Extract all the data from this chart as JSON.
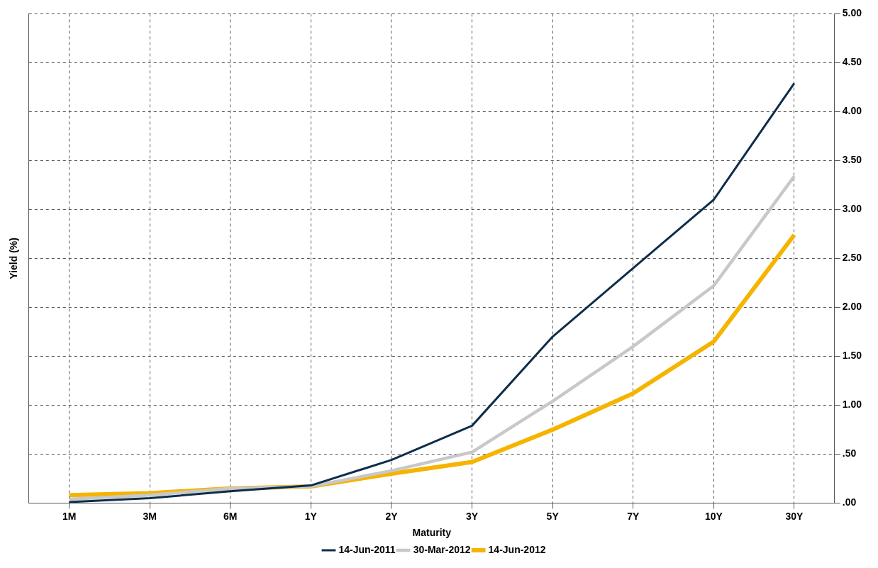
{
  "chart_data": {
    "type": "line",
    "xlabel": "Maturity",
    "ylabel": "Yield (%)",
    "categories": [
      "1M",
      "3M",
      "6M",
      "1Y",
      "2Y",
      "3Y",
      "5Y",
      "7Y",
      "10Y",
      "30Y"
    ],
    "series": [
      {
        "name": "14-Jun-2011",
        "color": "#0d2d4a",
        "values": [
          0.01,
          0.05,
          0.12,
          0.18,
          0.44,
          0.79,
          1.7,
          2.4,
          3.1,
          4.29
        ]
      },
      {
        "name": "30-Mar-2012",
        "color": "#c8c8c8",
        "values": [
          0.04,
          0.08,
          0.15,
          0.17,
          0.33,
          0.52,
          1.04,
          1.6,
          2.22,
          3.34
        ]
      },
      {
        "name": "14-Jun-2012",
        "color": "#f5b400",
        "values": [
          0.08,
          0.1,
          0.15,
          0.17,
          0.3,
          0.42,
          0.75,
          1.12,
          1.65,
          2.74
        ]
      }
    ],
    "ylim": [
      0,
      5
    ],
    "yticks": [
      {
        "value": 0,
        "label": ".00"
      },
      {
        "value": 0.5,
        "label": ".50"
      },
      {
        "value": 1,
        "label": "1.00"
      },
      {
        "value": 1.5,
        "label": "1.50"
      },
      {
        "value": 2,
        "label": "2.00"
      },
      {
        "value": 2.5,
        "label": "2.50"
      },
      {
        "value": 3,
        "label": "3.00"
      },
      {
        "value": 3.5,
        "label": "3.50"
      },
      {
        "value": 4,
        "label": "4.00"
      },
      {
        "value": 4.5,
        "label": "4.50"
      },
      {
        "value": 5,
        "label": "5.00"
      }
    ],
    "grid": true,
    "legend": "bottom",
    "marker": "none",
    "line_style": "solid"
  }
}
